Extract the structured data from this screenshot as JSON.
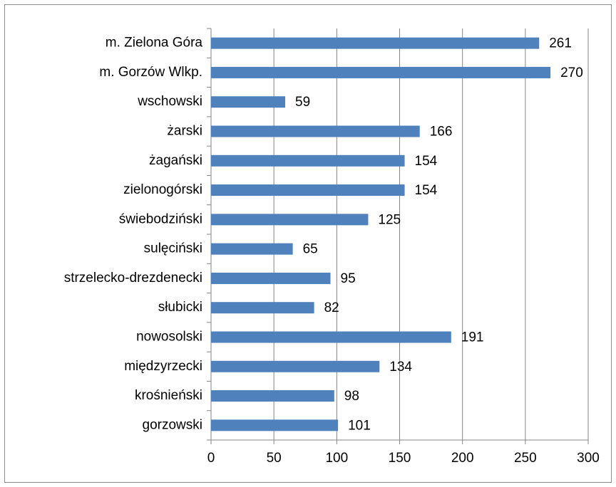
{
  "chart_data": {
    "type": "bar",
    "orientation": "horizontal",
    "categories": [
      "m. Zielona Góra",
      "m. Gorzów Wlkp.",
      "wschowski",
      "żarski",
      "żagański",
      "zielonogórski",
      "świebodziński",
      "sulęciński",
      "strzelecko-drezdenecki",
      "słubicki",
      "nowosolski",
      "międzyrzecki",
      "krośnieński",
      "gorzowski"
    ],
    "values": [
      261,
      270,
      59,
      166,
      154,
      154,
      125,
      65,
      95,
      82,
      191,
      134,
      98,
      101
    ],
    "color": "#4f81bd",
    "xlim": [
      0,
      300
    ],
    "xticks": [
      0,
      50,
      100,
      150,
      200,
      250,
      300
    ],
    "grid": true
  }
}
